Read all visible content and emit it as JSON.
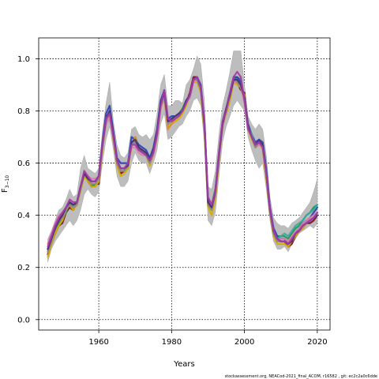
{
  "chart_data": {
    "type": "line",
    "xlabel": "Years",
    "ylabel_main": "F",
    "ylabel_sub": "3−10",
    "xlim": [
      1943.5,
      2023.5
    ],
    "ylim": [
      -0.04,
      1.08
    ],
    "x_ticks": [
      "1960",
      "1980",
      "2000",
      "2020"
    ],
    "y_ticks": [
      "0.0",
      "0.2",
      "0.4",
      "0.6",
      "0.8",
      "1.0"
    ],
    "grid": true,
    "footer": "stockassessment.org, NEACod-2021_final_ACOM, r16582 , git: ec2c2a0c6dde",
    "x": [
      1946,
      1947,
      1948,
      1949,
      1950,
      1951,
      1952,
      1953,
      1954,
      1955,
      1956,
      1957,
      1958,
      1959,
      1960,
      1961,
      1962,
      1963,
      1964,
      1965,
      1966,
      1967,
      1968,
      1969,
      1970,
      1971,
      1972,
      1973,
      1974,
      1975,
      1976,
      1977,
      1978,
      1979,
      1980,
      1981,
      1982,
      1983,
      1984,
      1985,
      1986,
      1987,
      1988,
      1989,
      1990,
      1991,
      1992,
      1993,
      1994,
      1995,
      1996,
      1997,
      1998,
      1999,
      2000,
      2001,
      2002,
      2003,
      2004,
      2005,
      2006,
      2007,
      2008,
      2009,
      2010,
      2011,
      2012,
      2013,
      2014,
      2015,
      2016,
      2017,
      2018,
      2019,
      2020
    ],
    "band_lower": [
      0.22,
      0.27,
      0.3,
      0.32,
      0.34,
      0.36,
      0.38,
      0.36,
      0.38,
      0.42,
      0.48,
      0.5,
      0.48,
      0.47,
      0.49,
      0.6,
      0.69,
      0.74,
      0.65,
      0.55,
      0.51,
      0.51,
      0.53,
      0.6,
      0.64,
      0.61,
      0.6,
      0.6,
      0.56,
      0.6,
      0.65,
      0.75,
      0.79,
      0.69,
      0.7,
      0.72,
      0.74,
      0.75,
      0.78,
      0.8,
      0.84,
      0.85,
      0.82,
      0.68,
      0.38,
      0.36,
      0.41,
      0.55,
      0.68,
      0.74,
      0.78,
      0.82,
      0.84,
      0.82,
      0.8,
      0.7,
      0.65,
      0.61,
      0.58,
      0.6,
      0.5,
      0.38,
      0.3,
      0.27,
      0.27,
      0.28,
      0.26,
      0.29,
      0.31,
      0.33,
      0.34,
      0.35,
      0.36,
      0.35,
      0.37
    ],
    "band_upper": [
      0.31,
      0.34,
      0.38,
      0.42,
      0.43,
      0.46,
      0.5,
      0.47,
      0.48,
      0.58,
      0.63,
      0.58,
      0.57,
      0.56,
      0.58,
      0.72,
      0.83,
      0.91,
      0.76,
      0.67,
      0.63,
      0.62,
      0.64,
      0.73,
      0.74,
      0.71,
      0.7,
      0.71,
      0.69,
      0.71,
      0.79,
      0.9,
      0.94,
      0.82,
      0.82,
      0.84,
      0.84,
      0.83,
      0.9,
      0.92,
      0.96,
      1.01,
      0.98,
      0.84,
      0.51,
      0.5,
      0.57,
      0.71,
      0.82,
      0.88,
      0.95,
      1.03,
      1.03,
      1.03,
      0.9,
      0.78,
      0.75,
      0.73,
      0.75,
      0.73,
      0.63,
      0.47,
      0.39,
      0.37,
      0.36,
      0.36,
      0.35,
      0.37,
      0.38,
      0.39,
      0.41,
      0.43,
      0.45,
      0.49,
      0.54
    ],
    "series": [
      {
        "color": "#7a0f1e",
        "values": [
          0.25,
          0.29,
          0.33,
          0.36,
          0.37,
          0.41,
          0.43,
          0.42,
          0.45,
          0.5,
          0.57,
          0.53,
          0.51,
          0.52,
          0.52,
          0.66,
          0.77,
          0.79,
          0.7,
          0.6,
          0.56,
          0.57,
          0.6,
          0.67,
          0.7,
          0.66,
          0.64,
          0.64,
          0.6,
          0.64,
          0.71,
          0.82,
          0.87,
          0.76,
          0.76,
          0.77,
          0.78,
          0.8,
          0.83,
          0.87,
          0.93,
          0.93,
          0.88,
          0.74,
          0.44,
          0.42,
          0.48,
          0.62,
          0.75,
          0.8,
          0.85,
          0.92,
          0.91,
          0.88,
          0.87,
          0.73,
          0.7,
          0.67,
          0.69,
          0.67,
          0.55,
          0.41,
          0.34,
          0.31,
          0.3,
          0.3,
          0.28,
          0.29,
          0.32,
          0.34,
          0.35,
          0.37,
          0.37,
          0.38,
          0.4
        ]
      },
      {
        "color": "#1a9850",
        "values": [
          0.26,
          0.31,
          0.34,
          0.37,
          0.39,
          0.41,
          0.45,
          0.43,
          0.44,
          0.51,
          0.55,
          0.54,
          0.52,
          0.51,
          0.55,
          0.67,
          0.77,
          0.8,
          0.71,
          0.61,
          0.57,
          0.57,
          0.58,
          0.68,
          0.68,
          0.66,
          0.65,
          0.64,
          0.62,
          0.64,
          0.72,
          0.83,
          0.86,
          0.76,
          0.77,
          0.77,
          0.79,
          0.81,
          0.84,
          0.85,
          0.92,
          0.93,
          0.89,
          0.75,
          0.45,
          0.44,
          0.5,
          0.63,
          0.75,
          0.81,
          0.87,
          0.92,
          0.93,
          0.92,
          0.84,
          0.74,
          0.7,
          0.67,
          0.68,
          0.67,
          0.57,
          0.42,
          0.35,
          0.32,
          0.32,
          0.32,
          0.31,
          0.33,
          0.35,
          0.36,
          0.38,
          0.4,
          0.41,
          0.43,
          0.44
        ]
      },
      {
        "color": "#2c3fb8",
        "values": [
          0.27,
          0.32,
          0.36,
          0.38,
          0.39,
          0.43,
          0.45,
          0.44,
          0.45,
          0.5,
          0.56,
          0.55,
          0.53,
          0.53,
          0.55,
          0.68,
          0.79,
          0.82,
          0.72,
          0.62,
          0.6,
          0.6,
          0.6,
          0.7,
          0.69,
          0.67,
          0.66,
          0.65,
          0.62,
          0.66,
          0.73,
          0.84,
          0.88,
          0.77,
          0.78,
          0.78,
          0.79,
          0.8,
          0.84,
          0.86,
          0.92,
          0.93,
          0.9,
          0.76,
          0.46,
          0.44,
          0.49,
          0.64,
          0.76,
          0.81,
          0.87,
          0.93,
          0.93,
          0.91,
          0.85,
          0.75,
          0.71,
          0.68,
          0.69,
          0.68,
          0.58,
          0.43,
          0.35,
          0.32,
          0.31,
          0.31,
          0.29,
          0.31,
          0.33,
          0.35,
          0.37,
          0.38,
          0.39,
          0.41,
          0.43
        ]
      },
      {
        "color": "#d4b000",
        "values": [
          0.24,
          0.29,
          0.33,
          0.36,
          0.38,
          0.42,
          0.44,
          0.42,
          0.44,
          0.49,
          0.55,
          0.53,
          0.51,
          0.51,
          0.53,
          0.65,
          0.76,
          0.79,
          0.69,
          0.59,
          0.55,
          0.56,
          0.58,
          0.66,
          0.7,
          0.65,
          0.64,
          0.63,
          0.59,
          0.63,
          0.7,
          0.81,
          0.85,
          0.74,
          0.75,
          0.76,
          0.77,
          0.79,
          0.82,
          0.86,
          0.91,
          0.91,
          0.87,
          0.72,
          0.43,
          0.4,
          0.46,
          0.61,
          0.74,
          0.79,
          0.84,
          0.91,
          0.9,
          0.89,
          0.86,
          0.73,
          0.69,
          0.66,
          0.68,
          0.65,
          0.54,
          0.41,
          0.32,
          0.29,
          0.29,
          0.29,
          0.28,
          0.3,
          0.32,
          0.34,
          0.35,
          0.37,
          0.38,
          0.39,
          0.41
        ]
      },
      {
        "color": "#d97fb0",
        "values": [
          0.29,
          0.33,
          0.37,
          0.4,
          0.41,
          0.43,
          0.46,
          0.45,
          0.45,
          0.51,
          0.57,
          0.55,
          0.54,
          0.54,
          0.55,
          0.66,
          0.75,
          0.77,
          0.7,
          0.61,
          0.58,
          0.58,
          0.59,
          0.66,
          0.66,
          0.64,
          0.63,
          0.63,
          0.6,
          0.63,
          0.7,
          0.81,
          0.85,
          0.75,
          0.76,
          0.77,
          0.79,
          0.8,
          0.83,
          0.85,
          0.91,
          0.92,
          0.89,
          0.75,
          0.45,
          0.44,
          0.49,
          0.63,
          0.74,
          0.8,
          0.86,
          0.91,
          0.91,
          0.89,
          0.83,
          0.73,
          0.7,
          0.66,
          0.67,
          0.66,
          0.56,
          0.42,
          0.34,
          0.31,
          0.31,
          0.31,
          0.3,
          0.32,
          0.34,
          0.35,
          0.37,
          0.38,
          0.39,
          0.4,
          0.41
        ]
      },
      {
        "color": "#e08a2c",
        "values": [
          0.26,
          0.3,
          0.35,
          0.38,
          0.39,
          0.42,
          0.44,
          0.43,
          0.44,
          0.5,
          0.56,
          0.54,
          0.52,
          0.52,
          0.54,
          0.66,
          0.76,
          0.79,
          0.7,
          0.6,
          0.57,
          0.57,
          0.59,
          0.67,
          0.68,
          0.65,
          0.64,
          0.63,
          0.6,
          0.64,
          0.71,
          0.82,
          0.85,
          0.73,
          0.75,
          0.77,
          0.78,
          0.8,
          0.83,
          0.86,
          0.92,
          0.92,
          0.88,
          0.74,
          0.44,
          0.42,
          0.48,
          0.62,
          0.75,
          0.8,
          0.86,
          0.92,
          0.91,
          0.89,
          0.85,
          0.74,
          0.7,
          0.66,
          0.68,
          0.66,
          0.56,
          0.42,
          0.33,
          0.3,
          0.3,
          0.3,
          0.29,
          0.31,
          0.33,
          0.34,
          0.36,
          0.37,
          0.38,
          0.39,
          0.4
        ]
      },
      {
        "color": "#3aa9a0",
        "values": [
          0.27,
          0.31,
          0.36,
          0.39,
          0.4,
          0.43,
          0.45,
          0.44,
          0.45,
          0.51,
          0.56,
          0.54,
          0.53,
          0.53,
          0.55,
          0.67,
          0.77,
          0.8,
          0.71,
          0.61,
          0.58,
          0.58,
          0.6,
          0.68,
          0.68,
          0.66,
          0.65,
          0.64,
          0.61,
          0.65,
          0.72,
          0.82,
          0.86,
          0.76,
          0.77,
          0.78,
          0.79,
          0.8,
          0.84,
          0.86,
          0.92,
          0.92,
          0.89,
          0.75,
          0.45,
          0.43,
          0.49,
          0.63,
          0.75,
          0.81,
          0.86,
          0.92,
          0.92,
          0.9,
          0.85,
          0.74,
          0.71,
          0.67,
          0.68,
          0.67,
          0.57,
          0.42,
          0.34,
          0.31,
          0.32,
          0.33,
          0.32,
          0.34,
          0.36,
          0.37,
          0.38,
          0.4,
          0.41,
          0.42,
          0.44
        ]
      },
      {
        "color": "#8a8a8a",
        "values": [
          0.26,
          0.3,
          0.35,
          0.38,
          0.39,
          0.42,
          0.44,
          0.43,
          0.44,
          0.5,
          0.56,
          0.54,
          0.52,
          0.52,
          0.54,
          0.66,
          0.76,
          0.79,
          0.7,
          0.6,
          0.57,
          0.57,
          0.59,
          0.67,
          0.68,
          0.65,
          0.64,
          0.63,
          0.6,
          0.64,
          0.71,
          0.82,
          0.86,
          0.75,
          0.76,
          0.77,
          0.78,
          0.8,
          0.83,
          0.86,
          0.92,
          0.92,
          0.88,
          0.74,
          0.44,
          0.42,
          0.48,
          0.62,
          0.75,
          0.8,
          0.86,
          0.92,
          0.91,
          0.89,
          0.85,
          0.74,
          0.7,
          0.66,
          0.68,
          0.66,
          0.56,
          0.42,
          0.33,
          0.3,
          0.3,
          0.3,
          0.29,
          0.31,
          0.33,
          0.34,
          0.36,
          0.37,
          0.38,
          0.39,
          0.41
        ]
      },
      {
        "color": "#4a2a70",
        "values": [
          0.27,
          0.31,
          0.35,
          0.38,
          0.4,
          0.43,
          0.45,
          0.44,
          0.45,
          0.51,
          0.56,
          0.54,
          0.53,
          0.53,
          0.55,
          0.67,
          0.77,
          0.8,
          0.71,
          0.61,
          0.58,
          0.58,
          0.59,
          0.68,
          0.69,
          0.66,
          0.65,
          0.64,
          0.61,
          0.65,
          0.72,
          0.83,
          0.87,
          0.76,
          0.77,
          0.78,
          0.79,
          0.8,
          0.84,
          0.86,
          0.92,
          0.93,
          0.89,
          0.75,
          0.45,
          0.43,
          0.49,
          0.63,
          0.75,
          0.81,
          0.86,
          0.92,
          0.92,
          0.9,
          0.85,
          0.74,
          0.7,
          0.67,
          0.68,
          0.67,
          0.56,
          0.42,
          0.34,
          0.31,
          0.3,
          0.3,
          0.29,
          0.3,
          0.33,
          0.34,
          0.36,
          0.37,
          0.38,
          0.39,
          0.4
        ]
      },
      {
        "color": "#a63aa8",
        "values": [
          0.28,
          0.32,
          0.36,
          0.39,
          0.41,
          0.43,
          0.46,
          0.45,
          0.45,
          0.51,
          0.57,
          0.55,
          0.53,
          0.53,
          0.55,
          0.67,
          0.77,
          0.79,
          0.7,
          0.61,
          0.58,
          0.58,
          0.6,
          0.67,
          0.67,
          0.65,
          0.64,
          0.63,
          0.61,
          0.64,
          0.71,
          0.82,
          0.88,
          0.77,
          0.76,
          0.77,
          0.78,
          0.8,
          0.83,
          0.86,
          0.92,
          0.93,
          0.89,
          0.76,
          0.47,
          0.44,
          0.49,
          0.64,
          0.76,
          0.8,
          0.87,
          0.93,
          0.95,
          0.93,
          0.84,
          0.73,
          0.7,
          0.67,
          0.68,
          0.66,
          0.56,
          0.42,
          0.34,
          0.31,
          0.3,
          0.3,
          0.29,
          0.31,
          0.33,
          0.34,
          0.36,
          0.37,
          0.38,
          0.39,
          0.41
        ]
      }
    ]
  }
}
